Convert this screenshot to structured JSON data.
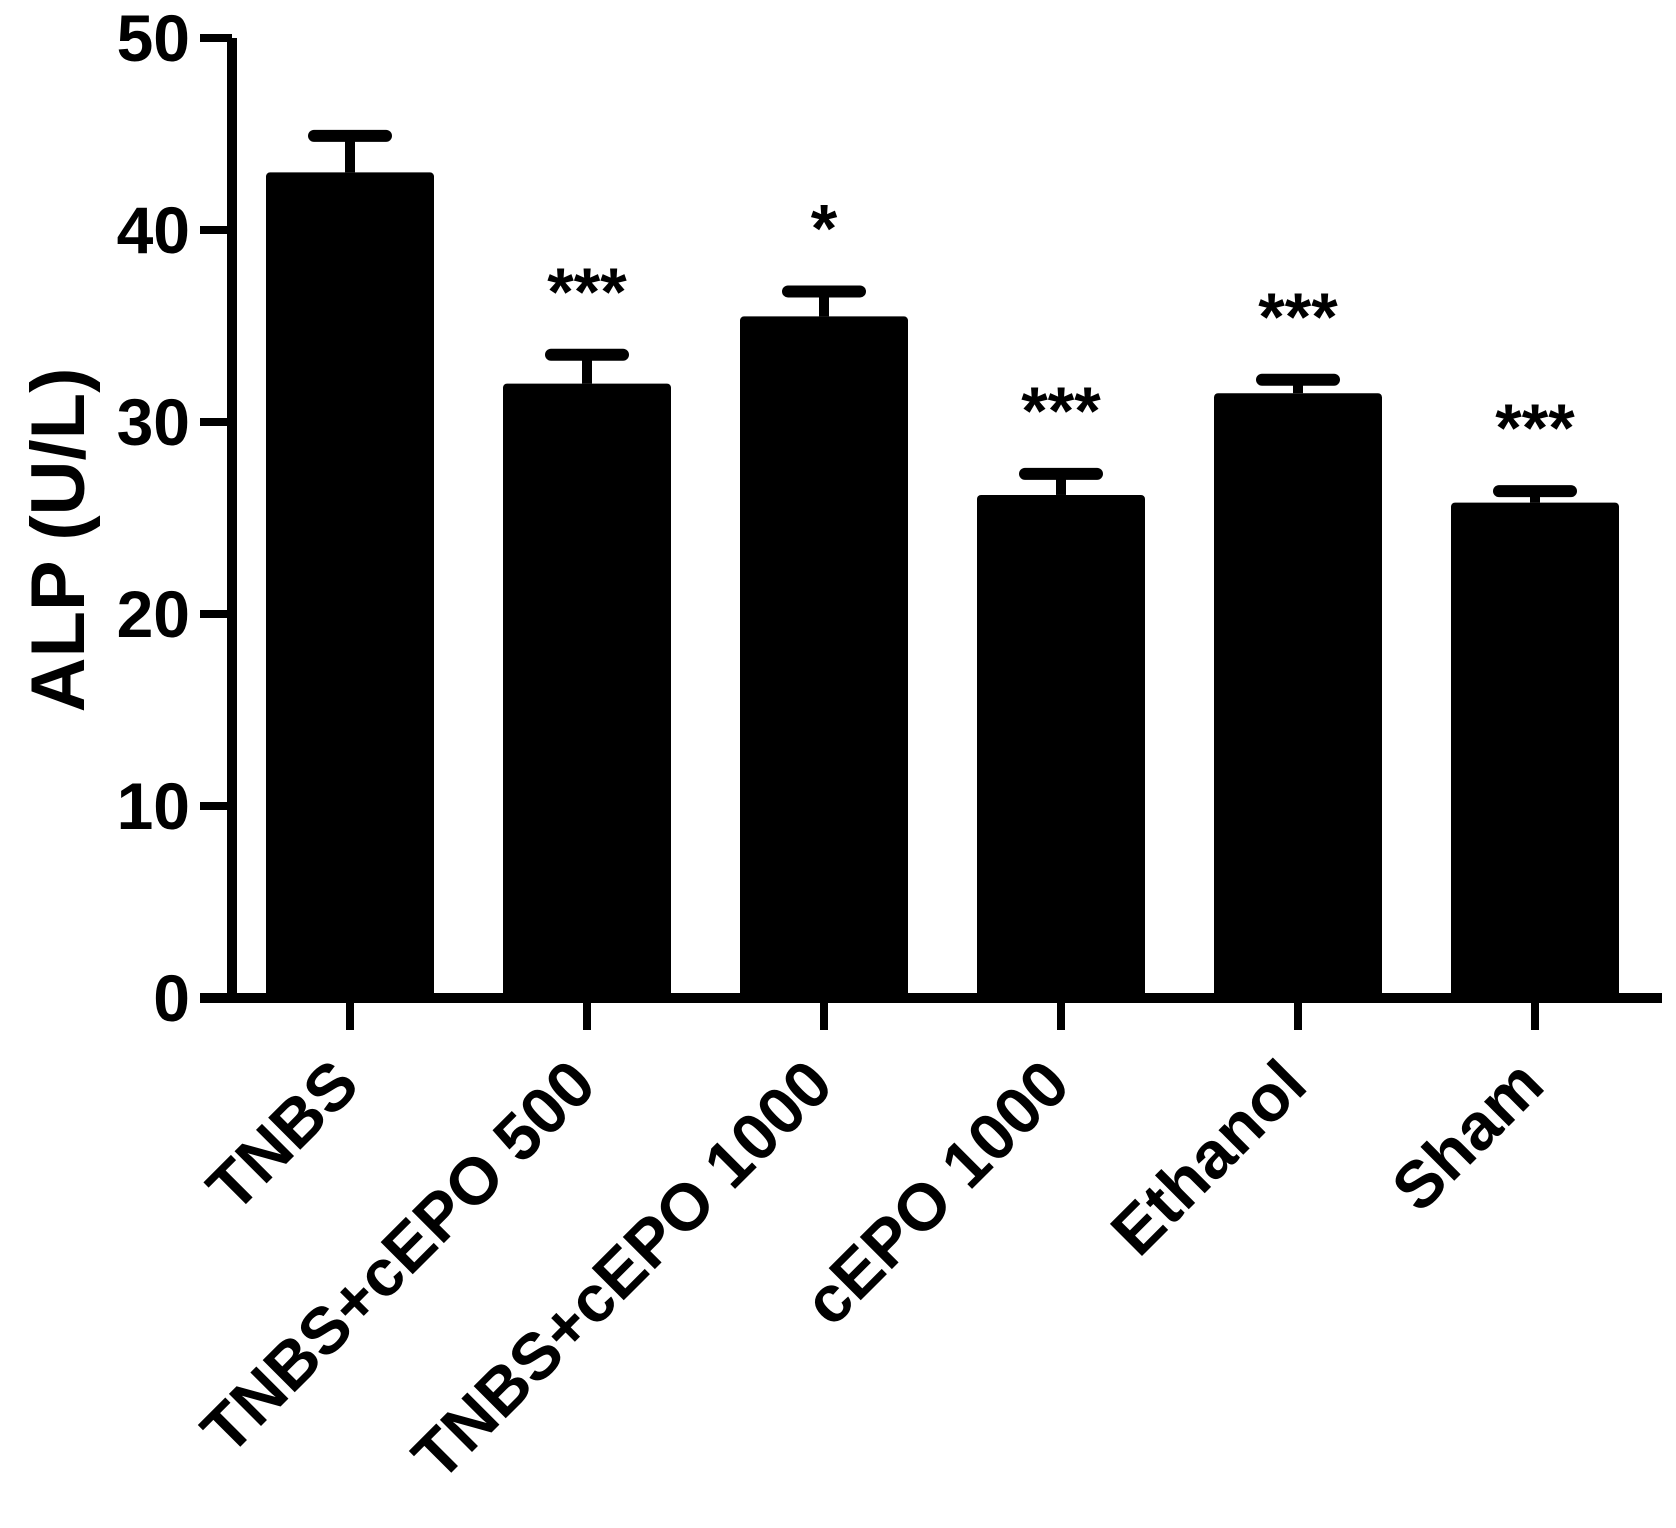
{
  "chart_data": {
    "type": "bar",
    "categories": [
      "TNBS",
      "TNBS+cEPO 500",
      "TNBS+cEPO 1000",
      "cEPO 1000",
      "Ethanol",
      "Sham"
    ],
    "values": [
      43.0,
      32.0,
      35.5,
      26.2,
      31.5,
      25.8
    ],
    "error": [
      1.9,
      1.5,
      1.3,
      1.1,
      0.7,
      0.6
    ],
    "significance": [
      "",
      "***",
      "*",
      "***",
      "***",
      "***"
    ],
    "xlabel": "",
    "ylabel": "ALP (U/L)",
    "ylim": [
      0,
      50
    ],
    "yticks": [
      "0",
      "10",
      "20",
      "30",
      "40",
      "50"
    ],
    "grid": false,
    "legend": "none",
    "bar_color": "#000000"
  }
}
